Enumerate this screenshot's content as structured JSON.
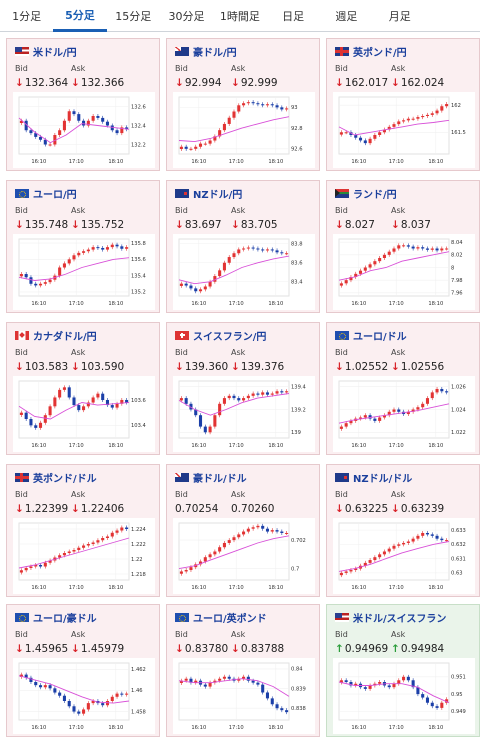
{
  "tabs": [
    {
      "label": "1分足"
    },
    {
      "label": "5分足",
      "active": true
    },
    {
      "label": "15分足"
    },
    {
      "label": "30分足"
    },
    {
      "label": "1時間足"
    },
    {
      "label": "日足"
    },
    {
      "label": "週足"
    },
    {
      "label": "月足"
    }
  ],
  "colors": {
    "card_down": "#fbeff1",
    "card_up": "#eaf4ea",
    "pair_text": "#1a3f9c",
    "arrow_down": "#d8232a",
    "arrow_up": "#2a9d3a",
    "candle_up": "#e23333",
    "candle_down": "#1b3fa8",
    "ma_line": "#d850d8",
    "active_tab": "#1a5fb4"
  },
  "labels": {
    "bid": "Bid",
    "ask": "Ask"
  },
  "cards": [
    {
      "pair": "米ドル/円",
      "flag": "us",
      "bid": "132.364",
      "ask": "132.366",
      "direction": "down",
      "chart_data": {
        "type": "candlestick",
        "x_ticks": [
          "16:10",
          "17:10",
          "18:10"
        ],
        "y_ticks": [
          "132.6",
          "132.4",
          "132.2"
        ],
        "ylim": [
          132.1,
          132.7
        ],
        "close": [
          132.45,
          132.35,
          132.32,
          132.28,
          132.25,
          132.2,
          132.2,
          132.3,
          132.35,
          132.45,
          132.55,
          132.52,
          132.45,
          132.4,
          132.45,
          132.5,
          132.48,
          132.44,
          132.4,
          132.35,
          132.32,
          132.38,
          132.36
        ],
        "ma": [
          132.48,
          132.33,
          132.22,
          132.3,
          132.42,
          132.4,
          132.38,
          132.36
        ]
      }
    },
    {
      "pair": "豪ドル/円",
      "flag": "au",
      "bid": "92.994",
      "ask": "92.999",
      "direction": "down",
      "chart_data": {
        "type": "candlestick",
        "x_ticks": [
          "16:10",
          "17:10",
          "18:10"
        ],
        "y_ticks": [
          "93",
          "92.8",
          "92.6"
        ],
        "ylim": [
          92.55,
          93.1
        ],
        "close": [
          92.62,
          92.6,
          92.6,
          92.62,
          92.65,
          92.65,
          92.68,
          92.72,
          92.78,
          92.84,
          92.9,
          92.96,
          93.02,
          93.04,
          93.05,
          93.04,
          93.03,
          93.02,
          93.03,
          93.02,
          93.0,
          92.98,
          92.99
        ],
        "ma": [
          92.68,
          92.67,
          92.7,
          92.75,
          92.8,
          92.84,
          92.88,
          92.91
        ]
      }
    },
    {
      "pair": "英ポンド/円",
      "flag": "gb",
      "bid": "162.017",
      "ask": "162.024",
      "direction": "down",
      "chart_data": {
        "type": "candlestick",
        "x_ticks": [
          "16:10",
          "17:10",
          "18:10"
        ],
        "y_ticks": [
          "162",
          "161.5"
        ],
        "ylim": [
          161.1,
          162.15
        ],
        "close": [
          161.5,
          161.5,
          161.45,
          161.4,
          161.35,
          161.3,
          161.38,
          161.45,
          161.5,
          161.55,
          161.6,
          161.65,
          161.7,
          161.72,
          161.75,
          161.75,
          161.78,
          161.8,
          161.82,
          161.85,
          161.9,
          161.98,
          162.02
        ],
        "ma": [
          161.6,
          161.45,
          161.5,
          161.55,
          161.6,
          161.65,
          161.68,
          161.72
        ]
      }
    },
    {
      "pair": "ユーロ/円",
      "flag": "eu",
      "bid": "135.748",
      "ask": "135.752",
      "direction": "down",
      "chart_data": {
        "type": "candlestick",
        "x_ticks": [
          "16:10",
          "17:10",
          "18:10"
        ],
        "y_ticks": [
          "135.8",
          "135.6",
          "135.4",
          "135.2"
        ],
        "ylim": [
          135.15,
          135.85
        ],
        "close": [
          135.42,
          135.38,
          135.3,
          135.28,
          135.3,
          135.32,
          135.35,
          135.4,
          135.5,
          135.55,
          135.6,
          135.65,
          135.68,
          135.7,
          135.72,
          135.75,
          135.74,
          135.72,
          135.75,
          135.78,
          135.76,
          135.73,
          135.75
        ],
        "ma": [
          135.38,
          135.34,
          135.36,
          135.42,
          135.5,
          135.55,
          135.6,
          135.62
        ]
      }
    },
    {
      "pair": "NZドル/円",
      "flag": "nz",
      "bid": "83.697",
      "ask": "83.705",
      "direction": "down",
      "chart_data": {
        "type": "candlestick",
        "x_ticks": [
          "16:10",
          "17:10",
          "18:10"
        ],
        "y_ticks": [
          "83.8",
          "83.6",
          "83.4"
        ],
        "ylim": [
          83.25,
          83.85
        ],
        "close": [
          83.38,
          83.36,
          83.33,
          83.3,
          83.32,
          83.35,
          83.4,
          83.46,
          83.52,
          83.6,
          83.66,
          83.7,
          83.74,
          83.75,
          83.76,
          83.75,
          83.74,
          83.73,
          83.74,
          83.73,
          83.71,
          83.7,
          83.7
        ],
        "ma": [
          83.42,
          83.38,
          83.4,
          83.47,
          83.55,
          83.6,
          83.64,
          83.67
        ]
      }
    },
    {
      "pair": "ランド/円",
      "flag": "za",
      "bid": "8.027",
      "ask": "8.037",
      "direction": "down",
      "chart_data": {
        "type": "candlestick",
        "x_ticks": [
          "16:10",
          "17:10",
          "18:10"
        ],
        "y_ticks": [
          "8.04",
          "8.02",
          "8",
          "7.98",
          "7.96"
        ],
        "ylim": [
          7.955,
          8.045
        ],
        "close": [
          7.975,
          7.98,
          7.985,
          7.99,
          7.995,
          8.0,
          8.005,
          8.01,
          8.015,
          8.02,
          8.025,
          8.03,
          8.035,
          8.035,
          8.033,
          8.03,
          8.032,
          8.03,
          8.028,
          8.03,
          8.027,
          8.03,
          8.03
        ],
        "ma": [
          7.98,
          7.985,
          7.995,
          8.0,
          8.01,
          8.015,
          8.02,
          8.025
        ]
      }
    },
    {
      "pair": "カナダドル/円",
      "flag": "ca",
      "bid": "103.583",
      "ask": "103.590",
      "direction": "down",
      "chart_data": {
        "type": "candlestick",
        "x_ticks": [
          "16:10",
          "17:10",
          "18:10"
        ],
        "y_ticks": [
          "103.6",
          "103.4"
        ],
        "ylim": [
          103.3,
          103.75
        ],
        "close": [
          103.5,
          103.45,
          103.4,
          103.38,
          103.42,
          103.48,
          103.55,
          103.62,
          103.68,
          103.7,
          103.62,
          103.56,
          103.52,
          103.55,
          103.58,
          103.62,
          103.65,
          103.6,
          103.56,
          103.54,
          103.57,
          103.6,
          103.58
        ],
        "ma": [
          103.55,
          103.47,
          103.45,
          103.52,
          103.58,
          103.56,
          103.57,
          103.58
        ]
      }
    },
    {
      "pair": "スイスフラン/円",
      "flag": "ch",
      "bid": "139.360",
      "ask": "139.376",
      "direction": "down",
      "chart_data": {
        "type": "candlestick",
        "x_ticks": [
          "16:10",
          "17:10",
          "18:10"
        ],
        "y_ticks": [
          "139.4",
          "139.2",
          "139"
        ],
        "ylim": [
          138.95,
          139.45
        ],
        "close": [
          139.3,
          139.25,
          139.2,
          139.15,
          139.05,
          139.0,
          139.05,
          139.15,
          139.25,
          139.3,
          139.32,
          139.3,
          139.28,
          139.3,
          139.32,
          139.34,
          139.33,
          139.35,
          139.33,
          139.34,
          139.36,
          139.35,
          139.36
        ],
        "ma": [
          139.28,
          139.2,
          139.15,
          139.2,
          139.26,
          139.3,
          139.32,
          139.34
        ]
      }
    },
    {
      "pair": "ユーロ/ドル",
      "flag": "eu",
      "bid": "1.02552",
      "ask": "1.02556",
      "direction": "down",
      "chart_data": {
        "type": "candlestick",
        "x_ticks": [
          "16:10",
          "17:10",
          "18:10"
        ],
        "y_ticks": [
          "1.026",
          "1.024",
          "1.022"
        ],
        "ylim": [
          1.0215,
          1.0265
        ],
        "close": [
          1.0225,
          1.0228,
          1.023,
          1.0232,
          1.0233,
          1.0235,
          1.0232,
          1.023,
          1.0233,
          1.0235,
          1.0238,
          1.024,
          1.0238,
          1.0236,
          1.0238,
          1.024,
          1.0242,
          1.0245,
          1.025,
          1.0255,
          1.0258,
          1.0256,
          1.0255
        ],
        "ma": [
          1.0228,
          1.0231,
          1.0233,
          1.0235,
          1.0237,
          1.0239,
          1.0242,
          1.0245
        ]
      }
    },
    {
      "pair": "英ポンド/ドル",
      "flag": "gb",
      "bid": "1.22399",
      "ask": "1.22406",
      "direction": "down",
      "chart_data": {
        "type": "candlestick",
        "x_ticks": [
          "16:10",
          "17:10",
          "18:10"
        ],
        "y_ticks": [
          "1.224",
          "1.222",
          "1.22",
          "1.218"
        ],
        "ylim": [
          1.2172,
          1.2248
        ],
        "close": [
          1.2185,
          1.2188,
          1.219,
          1.2192,
          1.219,
          1.2195,
          1.2198,
          1.2202,
          1.2205,
          1.2208,
          1.221,
          1.2212,
          1.2215,
          1.2218,
          1.222,
          1.2222,
          1.2225,
          1.2228,
          1.223,
          1.2235,
          1.2238,
          1.2242,
          1.224
        ],
        "ma": [
          1.2188,
          1.2192,
          1.2198,
          1.2204,
          1.221,
          1.2216,
          1.2222,
          1.2228
        ]
      }
    },
    {
      "pair": "豪ドル/ドル",
      "flag": "au",
      "bid": "0.70254",
      "ask": "0.70260",
      "direction": "none",
      "chart_data": {
        "type": "candlestick",
        "x_ticks": [
          "16:10",
          "17:10",
          "18:10"
        ],
        "y_ticks": [
          "0.702",
          "0.7"
        ],
        "ylim": [
          0.6992,
          0.7032
        ],
        "close": [
          0.6998,
          0.6999,
          0.7001,
          0.7003,
          0.7005,
          0.7008,
          0.701,
          0.7012,
          0.7015,
          0.7018,
          0.702,
          0.7022,
          0.7024,
          0.7026,
          0.7028,
          0.7029,
          0.703,
          0.7028,
          0.7026,
          0.7027,
          0.7026,
          0.7025,
          0.7025
        ],
        "ma": [
          0.7,
          0.7002,
          0.7006,
          0.701,
          0.7014,
          0.7018,
          0.7021,
          0.7023
        ]
      }
    },
    {
      "pair": "NZドル/ドル",
      "flag": "nz",
      "bid": "0.63225",
      "ask": "0.63239",
      "direction": "down",
      "chart_data": {
        "type": "candlestick",
        "x_ticks": [
          "16:10",
          "17:10",
          "18:10"
        ],
        "y_ticks": [
          "0.633",
          "0.632",
          "0.631",
          "0.63"
        ],
        "ylim": [
          0.6295,
          0.6335
        ],
        "close": [
          0.63,
          0.6301,
          0.6302,
          0.6303,
          0.6305,
          0.6307,
          0.6309,
          0.6311,
          0.6313,
          0.6315,
          0.6317,
          0.6319,
          0.632,
          0.6321,
          0.6322,
          0.6324,
          0.6326,
          0.6328,
          0.6327,
          0.6326,
          0.6324,
          0.6323,
          0.6323
        ],
        "ma": [
          0.6301,
          0.6303,
          0.6306,
          0.631,
          0.6314,
          0.6317,
          0.632,
          0.6322
        ]
      }
    },
    {
      "pair": "ユーロ/豪ドル",
      "flag": "eu",
      "bid": "1.45965",
      "ask": "1.45979",
      "direction": "down",
      "chart_data": {
        "type": "candlestick",
        "x_ticks": [
          "16:10",
          "17:10",
          "18:10"
        ],
        "y_ticks": [
          "1.462",
          "1.46",
          "1.458"
        ],
        "ylim": [
          1.4572,
          1.4626
        ],
        "close": [
          1.4615,
          1.4612,
          1.4608,
          1.4605,
          1.4603,
          1.4605,
          1.4602,
          1.4598,
          1.4595,
          1.459,
          1.4585,
          1.458,
          1.4578,
          1.4582,
          1.4588,
          1.459,
          1.4588,
          1.4586,
          1.459,
          1.4594,
          1.4597,
          1.4596,
          1.4597
        ],
        "ma": [
          1.4614,
          1.461,
          1.4606,
          1.46,
          1.4594,
          1.4589,
          1.4588,
          1.459
        ]
      }
    },
    {
      "pair": "ユーロ/英ポンド",
      "flag": "eu",
      "bid": "0.83780",
      "ask": "0.83788",
      "direction": "down",
      "chart_data": {
        "type": "candlestick",
        "x_ticks": [
          "16:10",
          "17:10",
          "18:10"
        ],
        "y_ticks": [
          "0.84",
          "0.839",
          "0.838"
        ],
        "ylim": [
          0.8374,
          0.8403
        ],
        "close": [
          0.8394,
          0.8395,
          0.8393,
          0.8394,
          0.8392,
          0.8391,
          0.8393,
          0.8394,
          0.8395,
          0.8396,
          0.8395,
          0.8394,
          0.8395,
          0.8396,
          0.8394,
          0.8393,
          0.8392,
          0.8388,
          0.8385,
          0.8382,
          0.838,
          0.8379,
          0.8378
        ],
        "ma": [
          0.8394,
          0.8393,
          0.8393,
          0.8394,
          0.8395,
          0.8394,
          0.8391,
          0.8386
        ]
      }
    },
    {
      "pair": "米ドル/スイスフラン",
      "flag": "us",
      "bid": "0.94969",
      "ask": "0.94984",
      "direction": "up",
      "chart_data": {
        "type": "candlestick",
        "x_ticks": [
          "16:10",
          "17:10",
          "18:10"
        ],
        "y_ticks": [
          "0.951",
          "0.95",
          "0.949"
        ],
        "ylim": [
          0.9485,
          0.9518
        ],
        "close": [
          0.9508,
          0.9507,
          0.9505,
          0.9506,
          0.9504,
          0.9503,
          0.9505,
          0.9506,
          0.9507,
          0.9505,
          0.9504,
          0.9506,
          0.9508,
          0.951,
          0.9508,
          0.9504,
          0.95,
          0.9498,
          0.9495,
          0.9493,
          0.9492,
          0.9495,
          0.9497
        ],
        "ma": [
          0.9507,
          0.9505,
          0.9505,
          0.9506,
          0.9506,
          0.9504,
          0.9499,
          0.9495
        ]
      }
    }
  ]
}
